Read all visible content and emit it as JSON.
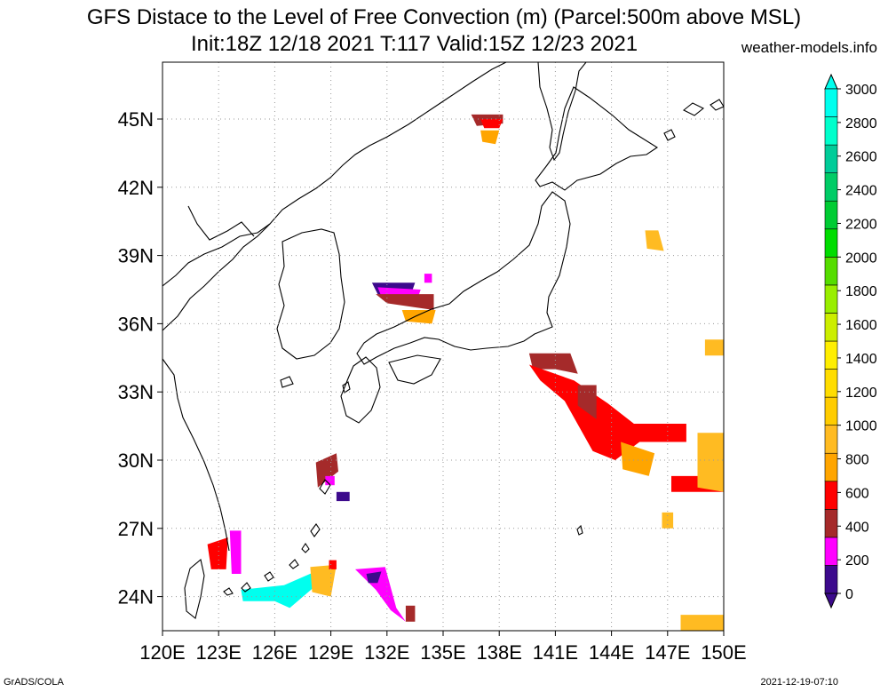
{
  "title": {
    "line1": "GFS Distace to the Level of Free Convection (m) (Parcel:500m above MSL)",
    "line2": "Init:18Z 12/18 2021 T:117 Valid:15Z 12/23 2021",
    "site": "weather-models.info"
  },
  "footer": {
    "software": "GrADS/COLA",
    "timestamp": "2021-12-19-07:10"
  },
  "map": {
    "lon_range": [
      120,
      150
    ],
    "lat_range": [
      22.5,
      47.5
    ],
    "lon_ticks": [
      {
        "value": 120,
        "label": "120E"
      },
      {
        "value": 123,
        "label": "123E"
      },
      {
        "value": 126,
        "label": "126E"
      },
      {
        "value": 129,
        "label": "129E"
      },
      {
        "value": 132,
        "label": "132E"
      },
      {
        "value": 135,
        "label": "135E"
      },
      {
        "value": 138,
        "label": "138E"
      },
      {
        "value": 141,
        "label": "141E"
      },
      {
        "value": 144,
        "label": "144E"
      },
      {
        "value": 147,
        "label": "147E"
      },
      {
        "value": 150,
        "label": "150E"
      }
    ],
    "lat_ticks": [
      {
        "value": 24,
        "label": "24N"
      },
      {
        "value": 27,
        "label": "27N"
      },
      {
        "value": 30,
        "label": "30N"
      },
      {
        "value": 33,
        "label": "33N"
      },
      {
        "value": 36,
        "label": "36N"
      },
      {
        "value": 39,
        "label": "39N"
      },
      {
        "value": 42,
        "label": "42N"
      },
      {
        "value": 45,
        "label": "45N"
      }
    ],
    "coast_color": "#000000",
    "grid_color": "#999999"
  },
  "colorbar": {
    "colors": [
      "#3c0a8c",
      "#ff00ff",
      "#a52a2a",
      "#ff0000",
      "#ffa500",
      "#ffbb22",
      "#ffcc00",
      "#ffdd00",
      "#ffee00",
      "#ccee00",
      "#99ee00",
      "#55dd00",
      "#00dd00",
      "#00cc33",
      "#00cc66",
      "#00cc99",
      "#00ffcc",
      "#00ffee"
    ],
    "top_arrow_color": "#00ffee",
    "bottom_arrow_color": "#3c0a8c",
    "labels": [
      "0",
      "200",
      "400",
      "600",
      "800",
      "1000",
      "1200",
      "1400",
      "1600",
      "1800",
      "2000",
      "2200",
      "2400",
      "2600",
      "2800",
      "3000"
    ]
  },
  "fields": [
    {
      "color": "#a52a2a",
      "lonlat": [
        [
          136.5,
          45.2
        ],
        [
          138.2,
          45.2
        ],
        [
          138.2,
          44.8
        ],
        [
          136.8,
          44.7
        ]
      ]
    },
    {
      "color": "#ff0000",
      "lonlat": [
        [
          137.0,
          45.0
        ],
        [
          138.2,
          45.0
        ],
        [
          138.0,
          44.6
        ],
        [
          137.2,
          44.6
        ]
      ]
    },
    {
      "color": "#ffa500",
      "lonlat": [
        [
          137.0,
          44.5
        ],
        [
          138.0,
          44.5
        ],
        [
          137.8,
          43.9
        ],
        [
          137.1,
          44.0
        ]
      ]
    },
    {
      "color": "#3c0a8c",
      "lonlat": [
        [
          131.2,
          37.8
        ],
        [
          133.5,
          37.8
        ],
        [
          133.2,
          37.1
        ],
        [
          131.5,
          37.3
        ]
      ]
    },
    {
      "color": "#ff00ff",
      "lonlat": [
        [
          131.5,
          37.6
        ],
        [
          133.8,
          37.5
        ],
        [
          133.6,
          37.0
        ],
        [
          131.7,
          37.2
        ]
      ]
    },
    {
      "color": "#a52a2a",
      "lonlat": [
        [
          131.4,
          37.3
        ],
        [
          134.5,
          37.3
        ],
        [
          134.5,
          36.6
        ],
        [
          132.0,
          36.9
        ]
      ]
    },
    {
      "color": "#ffa500",
      "lonlat": [
        [
          132.8,
          36.6
        ],
        [
          134.6,
          36.6
        ],
        [
          134.4,
          36.0
        ],
        [
          133.0,
          36.1
        ]
      ]
    },
    {
      "color": "#ff00ff",
      "lonlat": [
        [
          134.0,
          38.2
        ],
        [
          134.4,
          38.2
        ],
        [
          134.4,
          37.8
        ],
        [
          134.0,
          37.8
        ]
      ]
    },
    {
      "color": "#a52a2a",
      "lonlat": [
        [
          139.6,
          34.7
        ],
        [
          141.8,
          34.7
        ],
        [
          142.2,
          33.8
        ],
        [
          141.0,
          34.0
        ],
        [
          139.8,
          34.0
        ]
      ]
    },
    {
      "color": "#ff0000",
      "lonlat": [
        [
          139.6,
          34.2
        ],
        [
          142.0,
          33.5
        ],
        [
          143.8,
          32.5
        ],
        [
          145.2,
          31.6
        ],
        [
          148.0,
          31.6
        ],
        [
          148.0,
          30.8
        ],
        [
          145.5,
          30.8
        ],
        [
          144.2,
          30.0
        ],
        [
          143.0,
          30.4
        ],
        [
          141.5,
          32.6
        ],
        [
          140.2,
          33.5
        ]
      ]
    },
    {
      "color": "#a52a2a",
      "lonlat": [
        [
          142.2,
          33.3
        ],
        [
          143.2,
          33.3
        ],
        [
          143.2,
          31.8
        ],
        [
          142.2,
          32.4
        ]
      ]
    },
    {
      "color": "#ffa500",
      "lonlat": [
        [
          144.5,
          30.8
        ],
        [
          146.3,
          30.3
        ],
        [
          146.0,
          29.3
        ],
        [
          144.6,
          29.6
        ]
      ]
    },
    {
      "color": "#ff0000",
      "lonlat": [
        [
          147.2,
          29.3
        ],
        [
          150.0,
          29.3
        ],
        [
          150.0,
          28.6
        ],
        [
          147.2,
          28.6
        ]
      ]
    },
    {
      "color": "#ffbb22",
      "lonlat": [
        [
          148.6,
          31.2
        ],
        [
          150.0,
          31.2
        ],
        [
          150.0,
          28.6
        ],
        [
          148.6,
          28.8
        ]
      ]
    },
    {
      "color": "#ffbb22",
      "lonlat": [
        [
          145.8,
          40.1
        ],
        [
          146.5,
          40.1
        ],
        [
          146.8,
          39.2
        ],
        [
          145.9,
          39.3
        ]
      ]
    },
    {
      "color": "#ffbb22",
      "lonlat": [
        [
          149.0,
          35.3
        ],
        [
          150.0,
          35.3
        ],
        [
          150.0,
          34.6
        ],
        [
          149.0,
          34.6
        ]
      ]
    },
    {
      "color": "#ffbb22",
      "lonlat": [
        [
          147.7,
          23.2
        ],
        [
          150.0,
          23.2
        ],
        [
          150.0,
          22.5
        ],
        [
          147.7,
          22.5
        ]
      ]
    },
    {
      "color": "#ffbb22",
      "lonlat": [
        [
          146.7,
          27.7
        ],
        [
          147.3,
          27.7
        ],
        [
          147.3,
          27.0
        ],
        [
          146.7,
          27.0
        ]
      ]
    },
    {
      "color": "#a52a2a",
      "lonlat": [
        [
          128.2,
          29.9
        ],
        [
          129.3,
          30.3
        ],
        [
          129.4,
          29.5
        ],
        [
          128.3,
          28.8
        ]
      ]
    },
    {
      "color": "#ff00ff",
      "lonlat": [
        [
          128.7,
          29.3
        ],
        [
          129.2,
          29.3
        ],
        [
          129.2,
          28.9
        ],
        [
          128.7,
          28.9
        ]
      ]
    },
    {
      "color": "#3c0a8c",
      "lonlat": [
        [
          129.3,
          28.6
        ],
        [
          130.0,
          28.6
        ],
        [
          130.0,
          28.2
        ],
        [
          129.3,
          28.2
        ]
      ]
    },
    {
      "color": "#ff0000",
      "lonlat": [
        [
          122.4,
          26.3
        ],
        [
          123.5,
          26.6
        ],
        [
          123.4,
          25.2
        ],
        [
          122.6,
          25.2
        ]
      ]
    },
    {
      "color": "#ff00ff",
      "lonlat": [
        [
          123.6,
          26.9
        ],
        [
          124.2,
          26.9
        ],
        [
          124.2,
          25.0
        ],
        [
          123.7,
          25.0
        ]
      ]
    },
    {
      "color": "#00ffee",
      "lonlat": [
        [
          124.2,
          24.3
        ],
        [
          126.5,
          24.5
        ],
        [
          127.6,
          24.9
        ],
        [
          129.0,
          25.4
        ],
        [
          128.5,
          24.7
        ],
        [
          126.8,
          23.5
        ],
        [
          126.0,
          23.8
        ],
        [
          124.3,
          23.8
        ]
      ]
    },
    {
      "color": "#ffbb22",
      "lonlat": [
        [
          127.9,
          25.3
        ],
        [
          129.3,
          25.4
        ],
        [
          129.0,
          24.0
        ],
        [
          128.0,
          24.2
        ]
      ]
    },
    {
      "color": "#ff00ff",
      "lonlat": [
        [
          130.3,
          25.2
        ],
        [
          131.9,
          25.3
        ],
        [
          132.5,
          23.5
        ],
        [
          133.0,
          22.9
        ],
        [
          132.2,
          23.4
        ],
        [
          131.4,
          24.3
        ]
      ]
    },
    {
      "color": "#3c0a8c",
      "lonlat": [
        [
          130.9,
          25.0
        ],
        [
          131.7,
          25.1
        ],
        [
          131.5,
          24.6
        ],
        [
          131.0,
          24.6
        ]
      ]
    },
    {
      "color": "#a52a2a",
      "lonlat": [
        [
          133.0,
          23.6
        ],
        [
          133.5,
          23.6
        ],
        [
          133.5,
          22.9
        ],
        [
          133.0,
          22.9
        ]
      ]
    },
    {
      "color": "#ff0000",
      "lonlat": [
        [
          128.9,
          25.6
        ],
        [
          129.3,
          25.6
        ],
        [
          129.3,
          25.2
        ],
        [
          128.9,
          25.2
        ]
      ]
    }
  ]
}
